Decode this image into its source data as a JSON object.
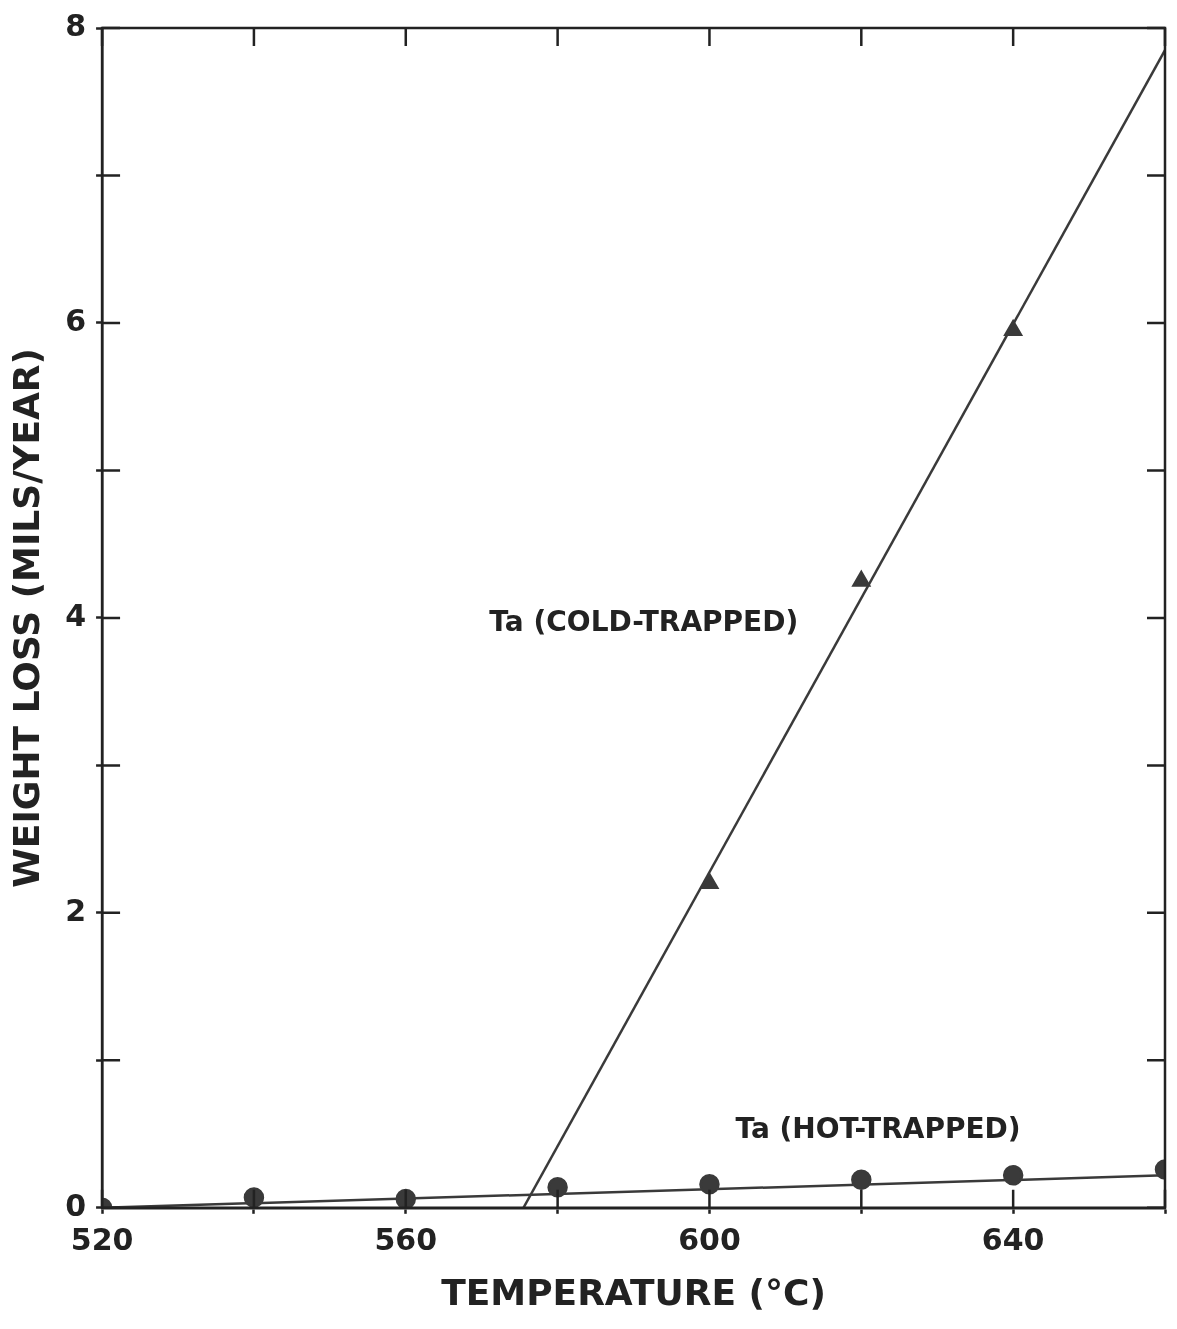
{
  "chart_data": {
    "type": "scatter",
    "xlabel": "TEMPERATURE (°C)",
    "ylabel": "WEIGHT LOSS (MILS/YEAR)",
    "xlim": [
      520,
      660
    ],
    "ylim": [
      0,
      8
    ],
    "xticks": [
      520,
      {
        "value": 540,
        "label": null
      },
      560,
      {
        "value": 580,
        "label": null
      },
      600,
      {
        "value": 620,
        "label": null
      },
      640,
      {
        "value": 660,
        "label": null
      }
    ],
    "yticks": [
      0,
      {
        "value": 1,
        "label": null
      },
      2,
      {
        "value": 3,
        "label": null
      },
      4,
      {
        "value": 5,
        "label": null
      },
      6,
      {
        "value": 7,
        "label": null
      },
      8
    ],
    "grid": false,
    "legend": false,
    "series": [
      {
        "type": "scatter",
        "marker": "triangle",
        "color": "#3a3a3a",
        "x": [
          600,
          620,
          640
        ],
        "values": [
          2.2,
          4.25,
          5.95
        ]
      },
      {
        "type": "scatter",
        "marker": "circle",
        "color": "#3a3a3a",
        "x": [
          520,
          540,
          560,
          580,
          600,
          620,
          640,
          660
        ],
        "values": [
          0,
          0.07,
          0.06,
          0.14,
          0.16,
          0.19,
          0.22,
          0.26
        ]
      },
      {
        "type": "line",
        "marker": "none",
        "color": "#3a3a3a",
        "x": [
          575.5,
          660
        ],
        "values": [
          0,
          7.85
        ]
      },
      {
        "type": "line",
        "marker": "none",
        "color": "#3a3a3a",
        "x": [
          520,
          660
        ],
        "values": [
          0,
          0.22
        ]
      }
    ],
    "annotations": [
      "Ta (COLD-TRAPPED)",
      "Ta (HOT-TRAPPED)"
    ]
  }
}
